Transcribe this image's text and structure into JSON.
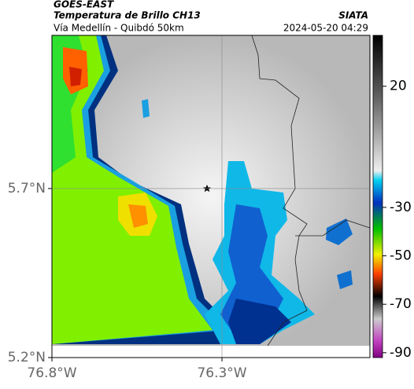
{
  "header": {
    "title": "GOES-EAST",
    "subtitle": "Temperatura de Brillo CH13",
    "location": "Vía Medellín - Quibdó 50km",
    "source": "SIATA",
    "datetime": "2024-05-20 04:29"
  },
  "map": {
    "lat_range": [
      5.2,
      6.153
    ],
    "lon_range": [
      -76.8,
      -75.865
    ],
    "lat_ticks": [
      {
        "value": 5.7,
        "label": "5.7°N"
      },
      {
        "value": 5.2,
        "label": "5.2°N"
      }
    ],
    "lon_ticks": [
      {
        "value": -76.8,
        "label": "76.8°W"
      },
      {
        "value": -76.3,
        "label": "76.3°W"
      }
    ]
  },
  "colorbar": {
    "range": [
      -92,
      41
    ],
    "ticks": [
      20,
      -30,
      -50,
      -70,
      -90
    ]
  }
}
